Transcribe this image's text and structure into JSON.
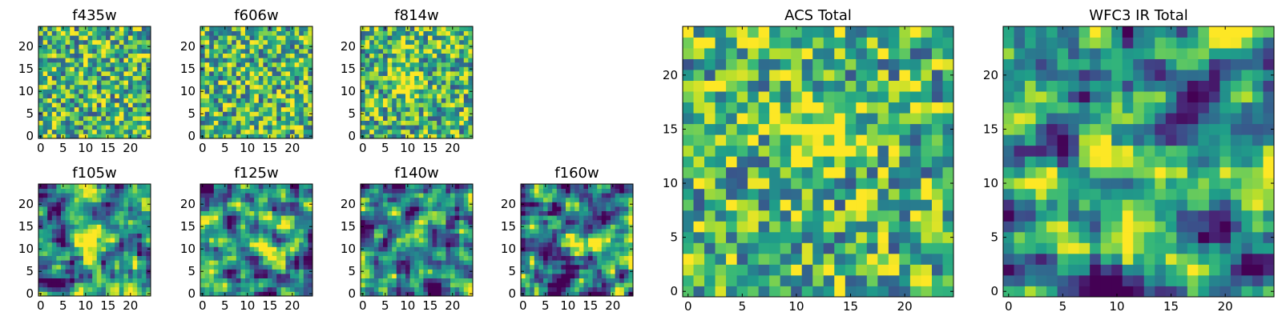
{
  "chart_data": [
    {
      "type": "heatmap",
      "title": "f435w",
      "size": 25,
      "xticks": [
        0,
        5,
        10,
        15,
        20
      ],
      "yticks": [
        0,
        5,
        10,
        15,
        20
      ],
      "xlim": [
        -0.5,
        24.5
      ],
      "ylim": [
        -0.5,
        24.5
      ],
      "colormap": "viridis",
      "noise": "high",
      "blob": null
    },
    {
      "type": "heatmap",
      "title": "f606w",
      "size": 25,
      "xticks": [
        0,
        5,
        10,
        15,
        20
      ],
      "yticks": [
        0,
        5,
        10,
        15,
        20
      ],
      "xlim": [
        -0.5,
        24.5
      ],
      "ylim": [
        -0.5,
        24.5
      ],
      "colormap": "viridis",
      "noise": "high",
      "blob": null
    },
    {
      "type": "heatmap",
      "title": "f814w",
      "size": 25,
      "xticks": [
        0,
        5,
        10,
        15,
        20
      ],
      "yticks": [
        0,
        5,
        10,
        15,
        20
      ],
      "xlim": [
        -0.5,
        24.5
      ],
      "ylim": [
        -0.5,
        24.5
      ],
      "colormap": "viridis",
      "noise": "high",
      "blob": [
        10,
        12
      ]
    },
    {
      "type": "heatmap",
      "title": "f105w",
      "size": 25,
      "xticks": [
        0,
        5,
        10,
        15,
        20
      ],
      "yticks": [
        0,
        5,
        10,
        15,
        20
      ],
      "xlim": [
        -0.5,
        24.5
      ],
      "ylim": [
        -0.5,
        24.5
      ],
      "colormap": "viridis",
      "noise": "smooth",
      "blob": [
        12,
        12
      ]
    },
    {
      "type": "heatmap",
      "title": "f125w",
      "size": 25,
      "xticks": [
        0,
        5,
        10,
        15,
        20
      ],
      "yticks": [
        0,
        5,
        10,
        15,
        20
      ],
      "xlim": [
        -0.5,
        24.5
      ],
      "ylim": [
        -0.5,
        24.5
      ],
      "colormap": "viridis",
      "noise": "smooth",
      "blob": [
        12,
        12
      ]
    },
    {
      "type": "heatmap",
      "title": "f140w",
      "size": 25,
      "xticks": [
        0,
        5,
        10,
        15,
        20
      ],
      "yticks": [
        0,
        5,
        10,
        15,
        20
      ],
      "xlim": [
        -0.5,
        24.5
      ],
      "ylim": [
        -0.5,
        24.5
      ],
      "colormap": "viridis",
      "noise": "smooth",
      "blob": [
        12,
        12
      ]
    },
    {
      "type": "heatmap",
      "title": "f160w",
      "size": 25,
      "xticks": [
        0,
        5,
        10,
        15,
        20
      ],
      "yticks": [
        0,
        5,
        10,
        15,
        20
      ],
      "xlim": [
        -0.5,
        24.5
      ],
      "ylim": [
        -0.5,
        24.5
      ],
      "colormap": "viridis",
      "noise": "smooth",
      "blob": [
        12,
        12
      ]
    },
    {
      "type": "heatmap",
      "title": "ACS Total",
      "size": 25,
      "xticks": [
        0,
        5,
        10,
        15,
        20
      ],
      "yticks": [
        0,
        5,
        10,
        15,
        20
      ],
      "xlim": [
        -0.5,
        24.5
      ],
      "ylim": [
        -0.5,
        24.5
      ],
      "colormap": "viridis",
      "noise": "high",
      "blob": [
        12,
        15
      ]
    },
    {
      "type": "heatmap",
      "title": "WFC3 IR Total",
      "size": 25,
      "xticks": [
        0,
        5,
        10,
        15,
        20
      ],
      "yticks": [
        0,
        5,
        10,
        15,
        20
      ],
      "xlim": [
        -0.5,
        24.5
      ],
      "ylim": [
        -0.5,
        24.5
      ],
      "colormap": "viridis",
      "noise": "smooth",
      "blob": [
        11,
        12
      ]
    }
  ]
}
